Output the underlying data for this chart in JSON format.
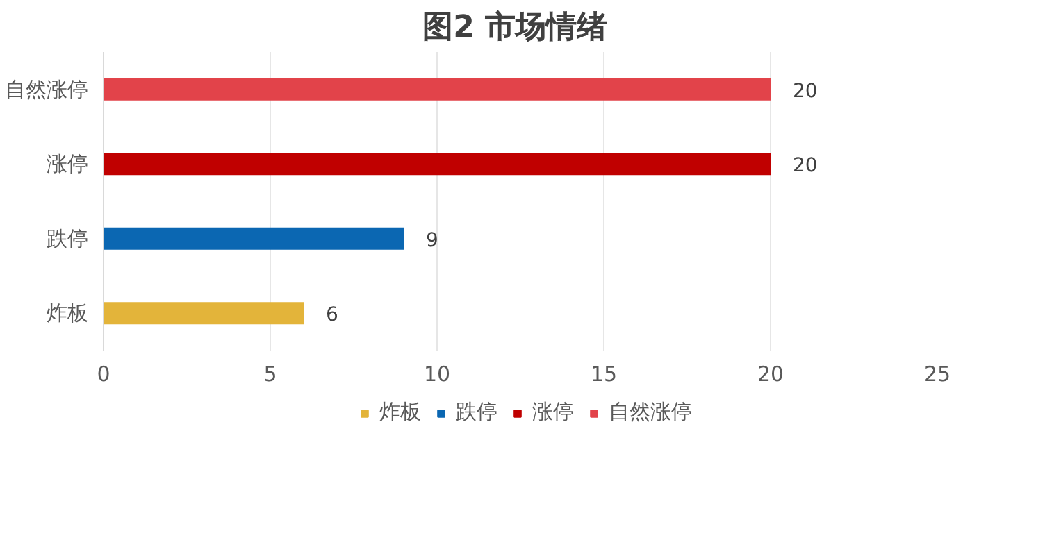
{
  "chart_data": {
    "type": "bar",
    "orientation": "horizontal",
    "title": "图2  市场情绪",
    "categories": [
      "自然涨停",
      "涨停",
      "跌停",
      "炸板"
    ],
    "series": [
      {
        "name": "炸板",
        "color": "#e3b43a",
        "values": [
          null,
          null,
          null,
          6
        ]
      },
      {
        "name": "跌停",
        "color": "#0b67b2",
        "values": [
          null,
          null,
          9,
          null
        ]
      },
      {
        "name": "涨停",
        "color": "#c00000",
        "values": [
          null,
          20,
          null,
          null
        ]
      },
      {
        "name": "自然涨停",
        "color": "#e2434a",
        "values": [
          20,
          null,
          null,
          null
        ]
      }
    ],
    "xlim": [
      0,
      25
    ],
    "xticks": [
      0,
      5,
      10,
      15,
      20,
      25
    ],
    "grid": "x",
    "legend": "bottom",
    "data_labels": true
  }
}
